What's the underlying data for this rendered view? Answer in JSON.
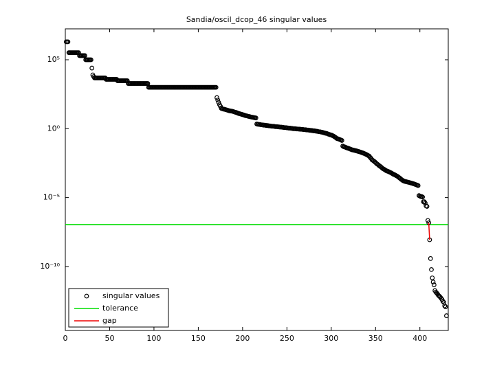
{
  "chart_data": {
    "type": "scatter",
    "title": "Sandia/oscil_dcop_46 singular values",
    "log_y": true,
    "xlim": [
      0,
      432
    ],
    "ylim": [
      2.3e-15,
      17500000.0
    ],
    "xticks": [
      0,
      50,
      100,
      150,
      200,
      250,
      300,
      350,
      400
    ],
    "yticks": [
      {
        "value": 1e-10,
        "label": "10⁻¹⁰"
      },
      {
        "value": 1e-05,
        "label": "10⁻⁵"
      },
      {
        "value": 1,
        "label": "10⁰"
      },
      {
        "value": 100000,
        "label": "10⁵"
      }
    ],
    "legend": "lower left",
    "series": [
      {
        "name": "singular values",
        "color": "#000000",
        "values": [
          2000000.0,
          2000000.0,
          2000000.0,
          330000.0,
          330000.0,
          330000.0,
          330000.0,
          330000.0,
          330000.0,
          330000.0,
          330000.0,
          330000.0,
          330000.0,
          330000.0,
          330000.0,
          200000.0,
          200000.0,
          200000.0,
          200000.0,
          200000.0,
          200000.0,
          200000.0,
          100000.0,
          100000.0,
          100000.0,
          100000.0,
          100000.0,
          100000.0,
          100000.0,
          25000.0,
          8000.0,
          6000.0,
          4800.0,
          4800.0,
          4800.0,
          4800.0,
          4800.0,
          4800.0,
          4800.0,
          4800.0,
          4800.0,
          4800.0,
          4800.0,
          4800.0,
          4800.0,
          3800.0,
          3800.0,
          3800.0,
          3800.0,
          3800.0,
          3800.0,
          3800.0,
          3800.0,
          3800.0,
          3800.0,
          3800.0,
          3800.0,
          3800.0,
          3000.0,
          3000.0,
          3000.0,
          3000.0,
          3000.0,
          3000.0,
          3000.0,
          3000.0,
          3000.0,
          3000.0,
          3000.0,
          3000.0,
          1900.0,
          1900.0,
          1900.0,
          1900.0,
          1900.0,
          1900.0,
          1900.0,
          1900.0,
          1900.0,
          1900.0,
          1900.0,
          1900.0,
          1900.0,
          1900.0,
          1900.0,
          1900.0,
          1900.0,
          1900.0,
          1900.0,
          1900.0,
          1900.0,
          1900.0,
          1900.0,
          1000.0,
          1000.0,
          1000.0,
          1000.0,
          1000.0,
          1000.0,
          1000.0,
          1000.0,
          1000.0,
          1000.0,
          1000.0,
          1000.0,
          1000.0,
          1000.0,
          1000.0,
          1000.0,
          1000.0,
          1000.0,
          1000.0,
          1000.0,
          1000.0,
          1000.0,
          1000.0,
          1000.0,
          1000.0,
          1000.0,
          1000.0,
          1000.0,
          1000.0,
          1000.0,
          1000.0,
          1000.0,
          1000.0,
          1000.0,
          1000.0,
          1000.0,
          1000.0,
          1000.0,
          1000.0,
          1000.0,
          1000.0,
          1000.0,
          1000.0,
          1000.0,
          1000.0,
          1000.0,
          1000.0,
          1000.0,
          1000.0,
          1000.0,
          1000.0,
          1000.0,
          1000.0,
          1000.0,
          1000.0,
          1000.0,
          1000.0,
          1000.0,
          1000.0,
          1000.0,
          1000.0,
          1000.0,
          1000.0,
          1000.0,
          1000.0,
          1000.0,
          1000.0,
          1000.0,
          1000.0,
          1000.0,
          1000.0,
          1000.0,
          1000.0,
          1000.0,
          1000.0,
          1000.0,
          1000.0,
          180,
          120,
          80,
          55,
          42,
          30,
          28,
          27,
          26,
          25,
          24,
          23,
          22,
          21,
          20,
          19.5,
          19,
          18.5,
          18,
          17,
          16,
          15.5,
          15,
          14,
          13,
          12.5,
          12,
          11.5,
          11,
          10.5,
          10,
          9.5,
          9,
          8.7,
          8.4,
          8.1,
          7.8,
          7.5,
          7.2,
          7,
          6.8,
          6.6,
          6.4,
          6.2,
          6,
          2.2,
          2.1,
          2.1,
          2.0,
          2.0,
          1.9,
          1.9,
          1.85,
          1.8,
          1.8,
          1.75,
          1.7,
          1.7,
          1.65,
          1.6,
          1.6,
          1.55,
          1.5,
          1.5,
          1.5,
          1.45,
          1.4,
          1.4,
          1.4,
          1.35,
          1.35,
          1.3,
          1.3,
          1.3,
          1.25,
          1.25,
          1.2,
          1.2,
          1.2,
          1.15,
          1.15,
          1.1,
          1.1,
          1.1,
          1.05,
          1.05,
          1.0,
          1.0,
          1.0,
          0.98,
          0.96,
          0.95,
          0.94,
          0.93,
          0.92,
          0.9,
          0.9,
          0.88,
          0.86,
          0.85,
          0.84,
          0.82,
          0.8,
          0.8,
          0.78,
          0.76,
          0.75,
          0.74,
          0.72,
          0.7,
          0.7,
          0.68,
          0.66,
          0.65,
          0.63,
          0.6,
          0.6,
          0.58,
          0.56,
          0.55,
          0.52,
          0.5,
          0.48,
          0.46,
          0.45,
          0.42,
          0.4,
          0.38,
          0.36,
          0.35,
          0.33,
          0.3,
          0.28,
          0.25,
          0.23,
          0.2,
          0.19,
          0.18,
          0.17,
          0.16,
          0.15,
          0.14,
          0.055,
          0.05,
          0.048,
          0.045,
          0.042,
          0.04,
          0.038,
          0.036,
          0.034,
          0.032,
          0.03,
          0.029,
          0.028,
          0.027,
          0.026,
          0.025,
          0.024,
          0.023,
          0.022,
          0.021,
          0.02,
          0.019,
          0.018,
          0.017,
          0.016,
          0.015,
          0.014,
          0.013,
          0.012,
          0.011,
          0.01,
          0.008,
          0.007,
          0.0055,
          0.005,
          0.0045,
          0.004,
          0.0035,
          0.003,
          0.0027,
          0.0024,
          0.0021,
          0.0019,
          0.0017,
          0.0015,
          0.0013,
          0.0012,
          0.0011,
          0.001,
          0.0009,
          0.00085,
          0.0008,
          0.00075,
          0.0007,
          0.00065,
          0.0006,
          0.00055,
          0.0005,
          0.00047,
          0.00044,
          0.0004,
          0.00037,
          0.00034,
          0.0003,
          0.00027,
          0.00024,
          0.00021,
          0.00019,
          0.00017,
          0.00016,
          0.00015,
          0.000145,
          0.00014,
          0.000135,
          0.00013,
          0.000125,
          0.00012,
          0.000115,
          0.00011,
          0.000105,
          0.0001,
          9.5e-05,
          9e-05,
          8.5e-05,
          8e-05,
          7.5e-05,
          1.4e-05,
          1.3e-05,
          1.2e-05,
          1.2e-05,
          1.1e-05,
          5e-06,
          5e-06,
          4e-06,
          2.5e-06,
          2.3e-06,
          2.2e-07,
          1.5e-07,
          8.7e-09,
          3.8e-10,
          6e-11,
          1.5e-11,
          7.5e-12,
          4.7e-12,
          1.8e-12,
          1.4e-12,
          1.2e-12,
          1e-12,
          8e-13,
          7e-13,
          6e-13,
          5e-13,
          4e-13,
          3e-13,
          2.5e-13,
          1.4e-13,
          1.2e-13,
          2.7e-14
        ]
      },
      {
        "name": "tolerance",
        "color": "#00dd00",
        "values": [
          1.1e-07
        ]
      },
      {
        "name": "gap",
        "color": "#ee0000",
        "x": [
          410,
          411
        ],
        "values": [
          1.5e-07,
          8.7e-09
        ]
      }
    ]
  }
}
